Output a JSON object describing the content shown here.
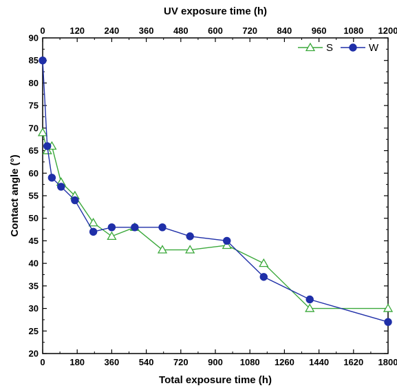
{
  "chart_data": {
    "type": "line",
    "xlabel": "Total exposure time (h)",
    "x2label": "UV exposure time (h)",
    "ylabel": "Contact angle (°)",
    "xlim": [
      0,
      1800
    ],
    "x2lim": [
      0,
      1200
    ],
    "ylim": [
      20,
      90
    ],
    "xticks": [
      "0",
      "180",
      "360",
      "540",
      "720",
      "900",
      "1080",
      "1260",
      "1440",
      "1620",
      "1800"
    ],
    "x2ticks": [
      "0",
      "120",
      "240",
      "360",
      "480",
      "600",
      "720",
      "840",
      "960",
      "1080",
      "1200"
    ],
    "yticks": [
      "20",
      "25",
      "30",
      "35",
      "40",
      "45",
      "50",
      "55",
      "60",
      "65",
      "70",
      "75",
      "80",
      "85",
      "90"
    ],
    "grid": false,
    "legend_position": "top-right",
    "series": [
      {
        "name": "S",
        "color": "#3aa83a",
        "marker": "triangle-open",
        "x": [
          0,
          24,
          48,
          96,
          168,
          264,
          360,
          480,
          624,
          768,
          960,
          1152,
          1392,
          1800
        ],
        "y": [
          69,
          65,
          66,
          58,
          55,
          49,
          46,
          48,
          43,
          43,
          44,
          40,
          30,
          30
        ]
      },
      {
        "name": "W",
        "color": "#1f2fa8",
        "marker": "circle-filled",
        "x": [
          0,
          24,
          48,
          96,
          168,
          264,
          360,
          480,
          624,
          768,
          960,
          1152,
          1392,
          1800
        ],
        "y": [
          85,
          66,
          59,
          57,
          54,
          47,
          48,
          48,
          48,
          46,
          45,
          37,
          32,
          27
        ]
      }
    ]
  }
}
